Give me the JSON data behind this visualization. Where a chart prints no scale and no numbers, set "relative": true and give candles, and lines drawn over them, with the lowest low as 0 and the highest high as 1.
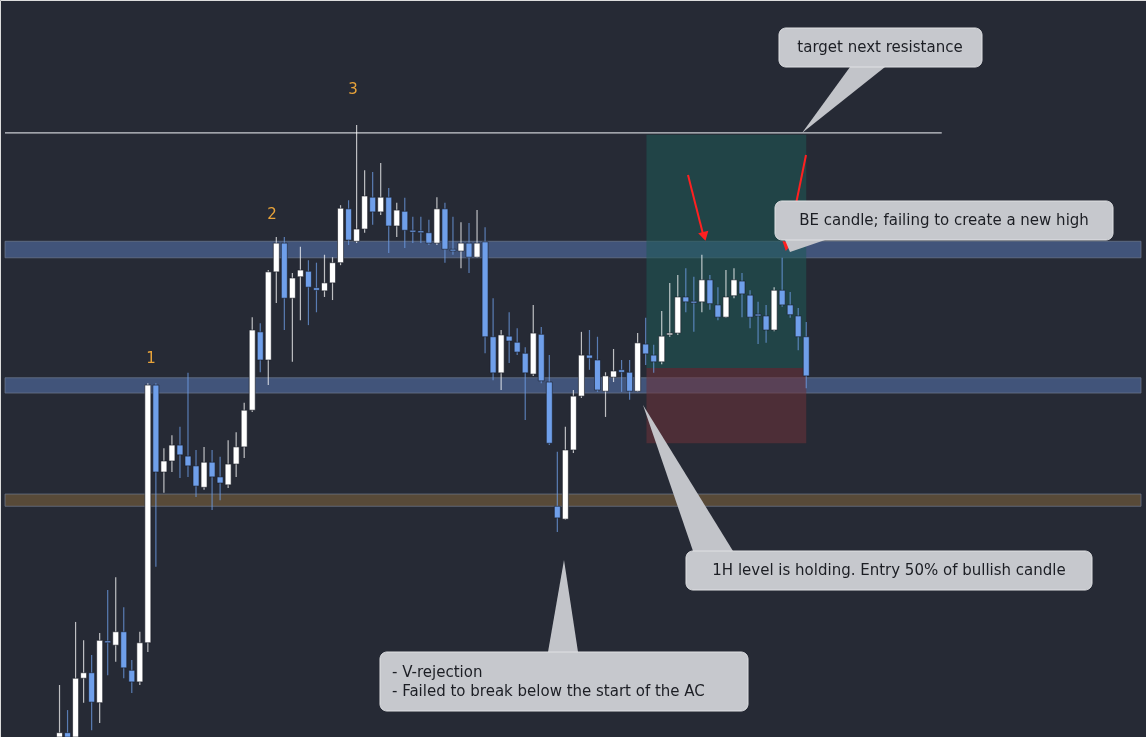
{
  "chart_data": {
    "type": "candlestick",
    "relative": true,
    "categories": [
      null,
      null,
      null,
      null,
      null,
      null,
      null,
      null,
      null,
      null,
      null,
      null,
      null,
      null,
      null,
      null,
      null,
      null,
      null,
      null,
      null,
      null,
      null,
      null,
      null,
      null,
      null,
      null,
      null,
      null,
      null,
      null,
      null,
      null,
      null,
      null,
      null,
      null,
      null,
      null,
      null,
      null,
      null,
      null,
      null,
      null,
      null,
      null,
      null,
      null,
      null,
      null,
      null,
      null,
      null,
      null,
      null,
      null,
      null,
      null,
      null,
      null,
      null,
      null,
      null,
      null,
      null,
      null,
      null,
      null,
      null,
      null,
      null,
      null,
      null,
      null,
      null,
      null,
      null,
      null,
      null,
      null,
      null,
      null,
      null,
      null,
      null,
      null,
      null,
      null,
      null,
      null,
      null,
      null
    ],
    "ohlc": [
      [
        0,
        0.085,
        0,
        0.007
      ],
      [
        0.007,
        0.044,
        0,
        0
      ],
      [
        0,
        0.188,
        0,
        0.096
      ],
      [
        0.096,
        0.158,
        0.056,
        0.105
      ],
      [
        0.105,
        0.134,
        0.011,
        0.057
      ],
      [
        0.056,
        0.17,
        0.023,
        0.158
      ],
      [
        0.157,
        0.24,
        0.101,
        0.154
      ],
      [
        0.15,
        0.261,
        0.123,
        0.172
      ],
      [
        0.172,
        0.212,
        0.096,
        0.113
      ],
      [
        0.109,
        0.126,
        0.072,
        0.09
      ],
      [
        0.09,
        0.172,
        0.085,
        0.154
      ],
      [
        0.154,
        0.578,
        0.139,
        0.575
      ],
      [
        0.575,
        0.578,
        0.278,
        0.433
      ],
      [
        0.433,
        0.472,
        0.399,
        0.451
      ],
      [
        0.451,
        0.493,
        0.433,
        0.477
      ],
      [
        0.477,
        0.507,
        0.423,
        0.461
      ],
      [
        0.459,
        0.595,
        0.425,
        0.443
      ],
      [
        0.443,
        0.469,
        0.392,
        0.41
      ],
      [
        0.408,
        0.474,
        0.404,
        0.449
      ],
      [
        0.449,
        0.469,
        0.371,
        0.425
      ],
      [
        0.425,
        0.458,
        0.387,
        0.415
      ],
      [
        0.412,
        0.485,
        0.407,
        0.446
      ],
      [
        0.446,
        0.498,
        0.425,
        0.474
      ],
      [
        0.474,
        0.546,
        0.456,
        0.534
      ],
      [
        0.534,
        0.686,
        0.531,
        0.665
      ],
      [
        0.662,
        0.676,
        0.596,
        0.616
      ],
      [
        0.616,
        0.763,
        0.575,
        0.76
      ],
      [
        0.76,
        0.817,
        0.709,
        0.807
      ],
      [
        0.807,
        0.817,
        0.665,
        0.717
      ],
      [
        0.717,
        0.758,
        0.613,
        0.75
      ],
      [
        0.752,
        0.801,
        0.681,
        0.763
      ],
      [
        0.761,
        0.779,
        0.673,
        0.735
      ],
      [
        0.734,
        0.775,
        0.694,
        0.73
      ],
      [
        0.729,
        0.788,
        0.719,
        0.742
      ],
      [
        0.742,
        0.784,
        0.714,
        0.775
      ],
      [
        0.775,
        0.869,
        0.771,
        0.864
      ],
      [
        0.863,
        0.877,
        0.804,
        0.812
      ],
      [
        0.81,
        1,
        0.807,
        0.83
      ],
      [
        0.83,
        0.926,
        0.824,
        0.884
      ],
      [
        0.882,
        0.923,
        0.837,
        0.858
      ],
      [
        0.858,
        0.938,
        0.853,
        0.882
      ],
      [
        0.882,
        0.897,
        0.791,
        0.835
      ],
      [
        0.835,
        0.873,
        0.817,
        0.861
      ],
      [
        0.859,
        0.881,
        0.799,
        0.828
      ],
      [
        0.828,
        0.85,
        0.807,
        0.825
      ],
      [
        0.827,
        0.85,
        0.807,
        0.824
      ],
      [
        0.824,
        0.845,
        0.804,
        0.807
      ],
      [
        0.807,
        0.882,
        0.804,
        0.863
      ],
      [
        0.863,
        0.873,
        0.775,
        0.797
      ],
      [
        0.797,
        0.85,
        0.788,
        0.794
      ],
      [
        0.794,
        0.841,
        0.766,
        0.807
      ],
      [
        0.807,
        0.84,
        0.758,
        0.784
      ],
      [
        0.784,
        0.861,
        0.783,
        0.807
      ],
      [
        0.809,
        0.833,
        0.627,
        0.654
      ],
      [
        0.654,
        0.717,
        0.583,
        0.595
      ],
      [
        0.595,
        0.665,
        0.567,
        0.657
      ],
      [
        0.655,
        0.694,
        0.611,
        0.647
      ],
      [
        0.645,
        0.668,
        0.624,
        0.629
      ],
      [
        0.627,
        0.637,
        0.518,
        0.595
      ],
      [
        0.593,
        0.706,
        0.59,
        0.66
      ],
      [
        0.658,
        0.67,
        0.578,
        0.582
      ],
      [
        0.58,
        0.624,
        0.477,
        0.48
      ],
      [
        0.377,
        0.466,
        0.335,
        0.358
      ],
      [
        0.356,
        0.507,
        0.355,
        0.469
      ],
      [
        0.469,
        0.567,
        0.464,
        0.557
      ],
      [
        0.557,
        0.662,
        0.554,
        0.624
      ],
      [
        0.624,
        0.665,
        0.6,
        0.619
      ],
      [
        0.616,
        0.654,
        0.564,
        0.567
      ],
      [
        0.565,
        0.596,
        0.523,
        0.59
      ],
      [
        0.588,
        0.634,
        0.58,
        0.598
      ],
      [
        0.6,
        0.616,
        0.564,
        0.596
      ],
      [
        0.596,
        0.616,
        0.551,
        0.565
      ],
      [
        0.565,
        0.66,
        0.564,
        0.644
      ],
      [
        0.642,
        0.685,
        0.608,
        0.626
      ],
      [
        0.624,
        0.641,
        0.595,
        0.613
      ],
      [
        0.613,
        0.696,
        0.609,
        0.655
      ],
      [
        0.657,
        0.742,
        0.654,
        0.66
      ],
      [
        0.66,
        0.755,
        0.657,
        0.719
      ],
      [
        0.719,
        0.766,
        0.694,
        0.711
      ],
      [
        0.712,
        0.752,
        0.662,
        0.709
      ],
      [
        0.711,
        0.788,
        0.694,
        0.747
      ],
      [
        0.747,
        0.755,
        0.698,
        0.708
      ],
      [
        0.706,
        0.735,
        0.681,
        0.686
      ],
      [
        0.686,
        0.763,
        0.685,
        0.719
      ],
      [
        0.721,
        0.766,
        0.717,
        0.747
      ],
      [
        0.745,
        0.758,
        0.686,
        0.724
      ],
      [
        0.722,
        0.73,
        0.668,
        0.686
      ],
      [
        0.691,
        0.711,
        0.642,
        0.688
      ],
      [
        0.688,
        0.706,
        0.644,
        0.665
      ],
      [
        0.665,
        0.735,
        0.663,
        0.73
      ],
      [
        0.73,
        0.783,
        0.703,
        0.706
      ],
      [
        0.706,
        0.727,
        0.685,
        0.69
      ],
      [
        0.688,
        0.701,
        0.632,
        0.654
      ],
      [
        0.654,
        0.678,
        0.57,
        0.59
      ]
    ],
    "colors": [
      "#ffffff",
      "#6f9fea",
      "#ffffff",
      "#ffffff",
      "#6f9fea",
      "#ffffff",
      "#6f9fea",
      "#ffffff",
      "#6f9fea",
      "#6f9fea",
      "#ffffff",
      "#ffffff",
      "#6f9fea",
      "#ffffff",
      "#ffffff",
      "#6f9fea",
      "#6f9fea",
      "#6f9fea",
      "#ffffff",
      "#6f9fea",
      "#6f9fea",
      "#ffffff",
      "#ffffff",
      "#ffffff",
      "#ffffff",
      "#6f9fea",
      "#ffffff",
      "#ffffff",
      "#6f9fea",
      "#ffffff",
      "#ffffff",
      "#6f9fea",
      "#6f9fea",
      "#ffffff",
      "#ffffff",
      "#ffffff",
      "#6f9fea",
      "#ffffff",
      "#ffffff",
      "#6f9fea",
      "#ffffff",
      "#6f9fea",
      "#ffffff",
      "#6f9fea",
      "#6f9fea",
      "#6f9fea",
      "#6f9fea",
      "#ffffff",
      "#6f9fea",
      "#6f9fea",
      "#ffffff",
      "#6f9fea",
      "#ffffff",
      "#6f9fea",
      "#6f9fea",
      "#ffffff",
      "#6f9fea",
      "#6f9fea",
      "#6f9fea",
      "#ffffff",
      "#6f9fea",
      "#6f9fea",
      "#6f9fea",
      "#ffffff",
      "#ffffff",
      "#ffffff",
      "#6f9fea",
      "#6f9fea",
      "#ffffff",
      "#ffffff",
      "#6f9fea",
      "#6f9fea",
      "#ffffff",
      "#6f9fea",
      "#6f9fea",
      "#ffffff",
      "#ffffff",
      "#ffffff",
      "#6f9fea",
      "#6f9fea",
      "#ffffff",
      "#6f9fea",
      "#6f9fea",
      "#ffffff",
      "#ffffff",
      "#6f9fea",
      "#6f9fea",
      "#6f9fea",
      "#6f9fea",
      "#ffffff",
      "#6f9fea",
      "#6f9fea",
      "#6f9fea",
      "#6f9fea"
    ],
    "ref_lines": [
      {
        "axis": "y",
        "value": 0.987,
        "color": "#c9cbd1"
      }
    ],
    "bands": [
      {
        "axis": "y",
        "from": 0.783,
        "to": 0.81,
        "color": "#5d7fbf"
      },
      {
        "axis": "y",
        "from": 0.562,
        "to": 0.587,
        "color": "#5d7fbf"
      },
      {
        "axis": "y",
        "from": 0.377,
        "to": 0.397,
        "color": "#8a6a3c"
      },
      {
        "axis": "y",
        "from": 0.603,
        "to": 0.984,
        "color": "#1e5a56"
      },
      {
        "axis": "y",
        "from": 0.48,
        "to": 0.603,
        "color": "#6e3139"
      }
    ],
    "annotations": [
      "1",
      "2",
      "3",
      "target next resistance",
      "BE candle; failing to create a new high",
      "1H level is holding. Entry 50% of bullish candle",
      "- V-rejection\n- Failed to break below the start of the AC"
    ]
  }
}
